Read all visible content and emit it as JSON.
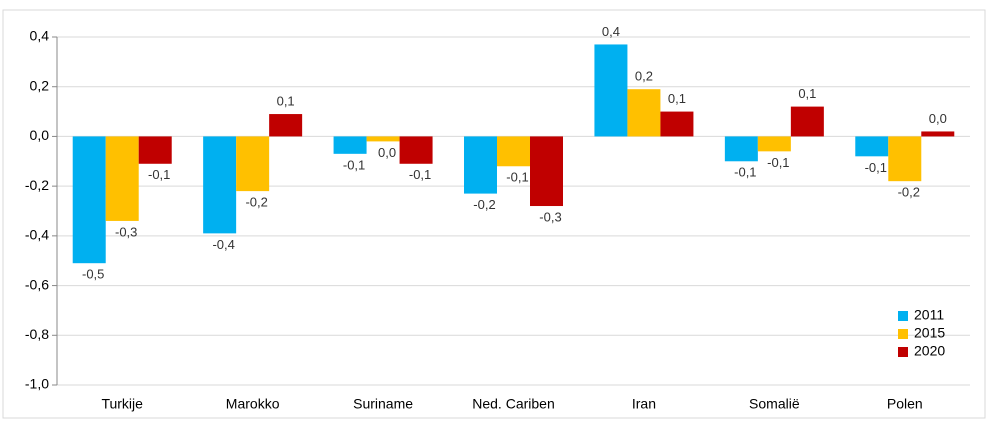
{
  "chart_data": {
    "type": "bar",
    "categories": [
      "Turkije",
      "Marokko",
      "Suriname",
      "Ned. Cariben",
      "Iran",
      "Somalië",
      "Polen"
    ],
    "series": [
      {
        "name": "2011",
        "color": "#00b0f0",
        "values": [
          -0.51,
          -0.39,
          -0.07,
          -0.23,
          0.37,
          -0.1,
          -0.08
        ],
        "value_labels": [
          "-0,5",
          "-0,4",
          "-0,1",
          "-0,2",
          "0,4",
          "-0,1",
          "-0,1"
        ]
      },
      {
        "name": "2015",
        "color": "#ffc000",
        "values": [
          -0.34,
          -0.22,
          -0.02,
          -0.12,
          0.19,
          -0.06,
          -0.18
        ],
        "value_labels": [
          "-0,3",
          "-0,2",
          "0,0",
          "-0,1",
          "0,2",
          "-0,1",
          "-0,2"
        ]
      },
      {
        "name": "2020",
        "color": "#c00000",
        "values": [
          -0.11,
          0.09,
          -0.11,
          -0.28,
          0.1,
          0.12,
          0.02
        ],
        "value_labels": [
          "-0,1",
          "0,1",
          "-0,1",
          "-0,3",
          "0,1",
          "0,1",
          "0,0"
        ]
      }
    ],
    "ylim": [
      -1.0,
      0.4
    ],
    "yticks": [
      {
        "value": -1.0,
        "label": "-1,0"
      },
      {
        "value": -0.8,
        "label": "-0,8"
      },
      {
        "value": -0.6,
        "label": "-0,6"
      },
      {
        "value": -0.4,
        "label": "-0,4"
      },
      {
        "value": -0.2,
        "label": "-0,2"
      },
      {
        "value": 0,
        "label": "0,0"
      },
      {
        "value": 0.2,
        "label": "0,2"
      },
      {
        "value": 0.4,
        "label": "0,4"
      }
    ],
    "grid": true,
    "legend": "bottom-right"
  }
}
